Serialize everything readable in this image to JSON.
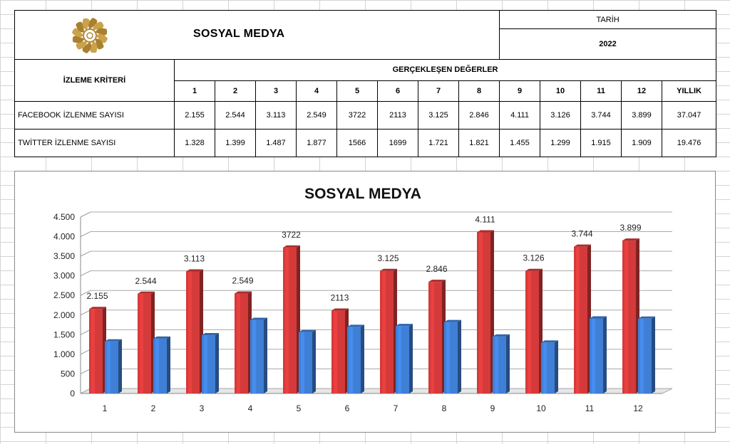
{
  "sheet": {
    "title": "SOSYAL MEDYA",
    "date_label": "TARİH",
    "year": "2022",
    "criteria_header": "İZLEME KRİTERİ",
    "values_header": "GERÇEKLEŞEN DEĞERLER",
    "columns": [
      "1",
      "2",
      "3",
      "4",
      "5",
      "6",
      "7",
      "8",
      "9",
      "10",
      "11",
      "12",
      "YILLIK"
    ],
    "rows": [
      {
        "label": "FACEBOOK İZLENME SAYISI",
        "values": [
          "2.155",
          "2.544",
          "3.113",
          "2.549",
          "3722",
          "2113",
          "3.125",
          "2.846",
          "4.111",
          "3.126",
          "3.744",
          "3.899",
          "37.047"
        ]
      },
      {
        "label": "TWİTTER İZLENME SAYISI",
        "values": [
          "1.328",
          "1.399",
          "1.487",
          "1.877",
          "1566",
          "1699",
          "1.721",
          "1.821",
          "1.455",
          "1.299",
          "1.915",
          "1.909",
          "19.476"
        ]
      }
    ]
  },
  "chart_data": {
    "type": "bar",
    "title": "SOSYAL MEDYA",
    "categories": [
      "1",
      "2",
      "3",
      "4",
      "5",
      "6",
      "7",
      "8",
      "9",
      "10",
      "11",
      "12"
    ],
    "series": [
      {
        "color": "#d43a3a",
        "values": [
          2155,
          2544,
          3113,
          2549,
          3722,
          2113,
          3125,
          2846,
          4111,
          3126,
          3744,
          3899
        ],
        "labels": [
          "2.155",
          "2.544",
          "3.113",
          "2.549",
          "3722",
          "2113",
          "3.125",
          "2.846",
          "4.111",
          "3.126",
          "3.744",
          "3.899"
        ]
      },
      {
        "color": "#3f7fd6",
        "values": [
          1328,
          1399,
          1487,
          1877,
          1566,
          1699,
          1721,
          1821,
          1455,
          1299,
          1915,
          1909
        ]
      }
    ],
    "ylim": [
      0,
      4500
    ],
    "yticks": [
      0,
      500,
      1000,
      1500,
      2000,
      2500,
      3000,
      3500,
      4000,
      4500
    ],
    "ytick_labels": [
      "0",
      "500",
      "1.000",
      "1.500",
      "2.000",
      "2.500",
      "3.000",
      "3.500",
      "4.000",
      "4.500"
    ],
    "grid": true,
    "legend": "none"
  }
}
